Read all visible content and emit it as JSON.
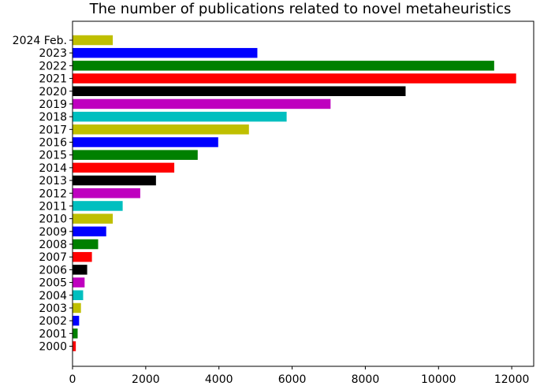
{
  "chart_data": {
    "type": "bar",
    "orientation": "horizontal",
    "title": "The number of publications related to novel metaheuristics",
    "xlabel": "",
    "ylabel": "",
    "xlim": [
      0,
      12600
    ],
    "xticks": [
      0,
      2000,
      4000,
      6000,
      8000,
      10000,
      12000
    ],
    "grid": false,
    "legend": "none",
    "categories": [
      "2000",
      "2001",
      "2002",
      "2003",
      "2004",
      "2005",
      "2006",
      "2007",
      "2008",
      "2009",
      "2010",
      "2011",
      "2012",
      "2013",
      "2014",
      "2015",
      "2016",
      "2017",
      "2018",
      "2019",
      "2020",
      "2021",
      "2022",
      "2023",
      "2024 Feb."
    ],
    "values": [
      90,
      140,
      180,
      230,
      290,
      330,
      400,
      530,
      700,
      920,
      1100,
      1370,
      1850,
      2280,
      2780,
      3420,
      3980,
      4820,
      5850,
      7050,
      9100,
      12120,
      11520,
      5050,
      1100
    ],
    "colors": [
      "#ff0000",
      "#008000",
      "#0000ff",
      "#bfbf00",
      "#00bfbf",
      "#bf00bf",
      "#000000",
      "#ff0000",
      "#008000",
      "#0000ff",
      "#bfbf00",
      "#00bfbf",
      "#bf00bf",
      "#000000",
      "#ff0000",
      "#008000",
      "#0000ff",
      "#bfbf00",
      "#00bfbf",
      "#bf00bf",
      "#000000",
      "#ff0000",
      "#008000",
      "#0000ff",
      "#bfbf00"
    ]
  }
}
